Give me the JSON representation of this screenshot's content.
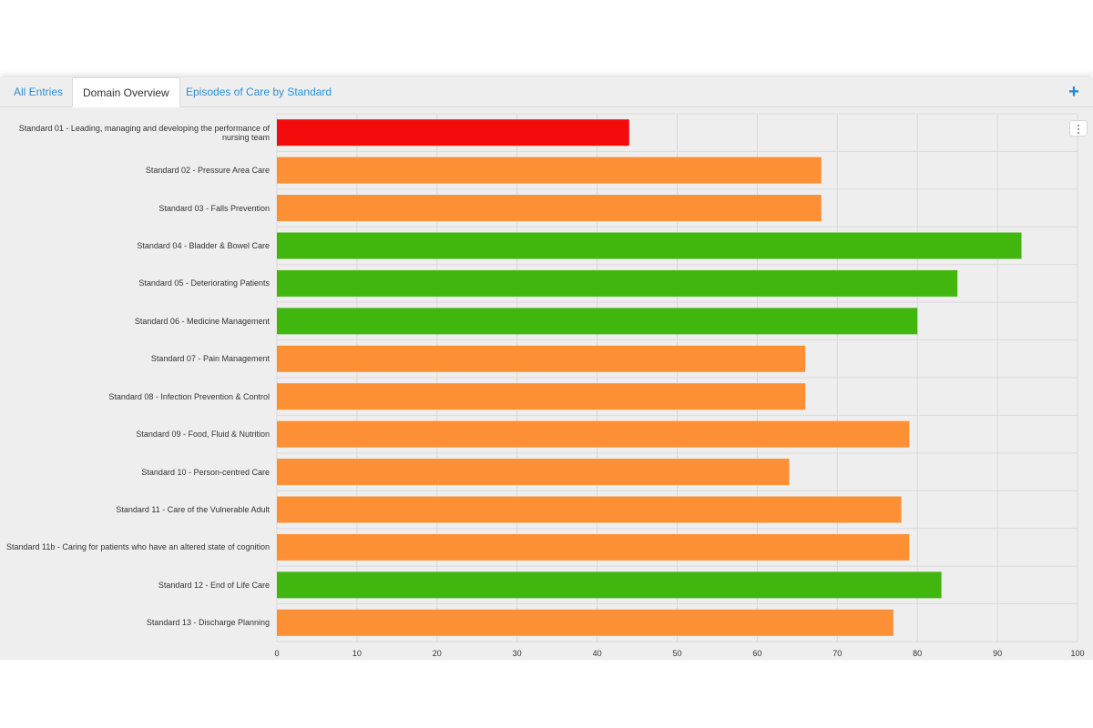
{
  "tabs": [
    {
      "label": "All Entries",
      "active": false
    },
    {
      "label": "Domain Overview",
      "active": true
    },
    {
      "label": "Episodes of Care by Standard",
      "active": false
    }
  ],
  "add_button": {
    "symbol": "+",
    "icon": "plus-icon"
  },
  "chart_menu": {
    "icon": "vertical-ellipsis-icon"
  },
  "colors": {
    "red": "#f40b0b",
    "orange": "#fd9035",
    "green": "#41b60e",
    "grid": "#d9d9d9",
    "tab_link": "#2a8fd6"
  },
  "chart_data": {
    "type": "bar",
    "orientation": "horizontal",
    "categories": [
      "Standard 01 -  Leading, managing and developing the performance of nursing team",
      "Standard 02 - Pressure Area Care",
      "Standard 03 - Falls Prevention",
      "Standard 04 - Bladder & Bowel Care",
      "Standard 05 - Deteriorating Patients",
      "Standard 06 - Medicine Management",
      "Standard 07 - Pain Management",
      "Standard 08 - Infection Prevention & Control",
      "Standard 09 - Food, Fluid & Nutrition",
      "Standard 10 - Person-centred Care",
      "Standard 11 - Care of the Vulnerable Adult",
      "Standard 11b - Caring for patients who have an altered state of cognition",
      "Standard 12 - End of Life Care",
      "Standard 13 - Discharge Planning"
    ],
    "values": [
      44,
      68,
      68,
      93,
      85,
      80,
      66,
      66,
      79,
      64,
      78,
      79,
      83,
      77
    ],
    "bar_colors": [
      "red",
      "orange",
      "orange",
      "green",
      "green",
      "green",
      "orange",
      "orange",
      "orange",
      "orange",
      "orange",
      "orange",
      "green",
      "orange"
    ],
    "xlim": [
      0,
      100
    ],
    "xticks": [
      0,
      10,
      20,
      30,
      40,
      50,
      60,
      70,
      80,
      90,
      100
    ],
    "grid": true,
    "title": "",
    "xlabel": "",
    "ylabel": ""
  }
}
